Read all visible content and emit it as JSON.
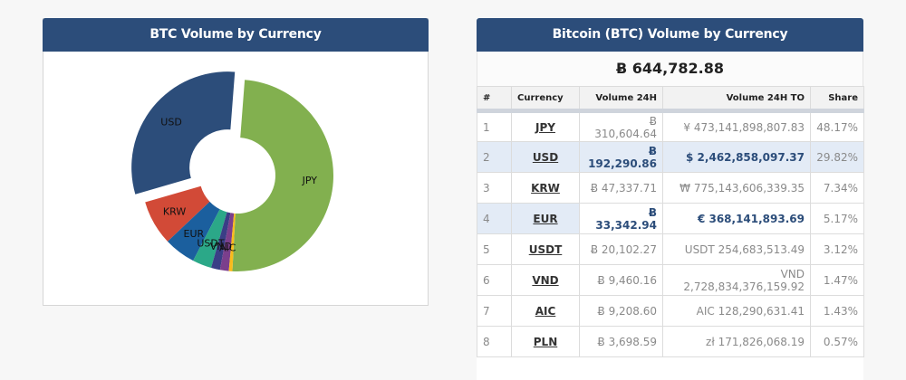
{
  "chart_panel": {
    "title": "BTC Volume by Currency"
  },
  "chart_data": {
    "type": "pie",
    "style": "donut",
    "categories": [
      "JPY",
      "USD",
      "KRW",
      "EUR",
      "USDT",
      "VND",
      "AIC",
      "PLN"
    ],
    "values": [
      48.17,
      29.82,
      7.34,
      5.17,
      3.12,
      1.47,
      1.43,
      0.57
    ],
    "labels_shown": [
      "JPY",
      "USD",
      "KRW",
      "EUR",
      "USDT",
      "VND",
      "AIC",
      ""
    ],
    "exploded": [
      "USD"
    ],
    "colors": [
      "#82b04f",
      "#2c4d7a",
      "#d24a37",
      "#1b5f9e",
      "#2ba888",
      "#3a3e86",
      "#7b3f8c",
      "#fbbb1b"
    ]
  },
  "table_panel": {
    "title": "Bitcoin (BTC) Volume by Currency",
    "total": "Ƀ 644,782.88",
    "columns": [
      "#",
      "Currency",
      "Volume 24H",
      "Volume 24H TO",
      "Share"
    ],
    "rows": [
      {
        "rank": "1",
        "currency": "JPY",
        "vol": "Ƀ 310,604.64",
        "volto": "¥ 473,141,898,807.83",
        "share": "48.17%"
      },
      {
        "rank": "2",
        "currency": "USD",
        "vol": "Ƀ 192,290.86",
        "volto": "$ 2,462,858,097.37",
        "share": "29.82%"
      },
      {
        "rank": "3",
        "currency": "KRW",
        "vol": "Ƀ 47,337.71",
        "volto": "₩ 775,143,606,339.35",
        "share": "7.34%"
      },
      {
        "rank": "4",
        "currency": "EUR",
        "vol": "Ƀ 33,342.94",
        "volto": "€ 368,141,893.69",
        "share": "5.17%"
      },
      {
        "rank": "5",
        "currency": "USDT",
        "vol": "Ƀ 20,102.27",
        "volto": "USDT 254,683,513.49",
        "share": "3.12%"
      },
      {
        "rank": "6",
        "currency": "VND",
        "vol": "Ƀ 9,460.16",
        "volto": "VND 2,728,834,376,159.92",
        "share": "1.47%"
      },
      {
        "rank": "7",
        "currency": "AIC",
        "vol": "Ƀ 9,208.60",
        "volto": "AIC 128,290,631.41",
        "share": "1.43%"
      },
      {
        "rank": "8",
        "currency": "PLN",
        "vol": "Ƀ 3,698.59",
        "volto": "zł 171,826,068.19",
        "share": "0.57%"
      }
    ]
  }
}
